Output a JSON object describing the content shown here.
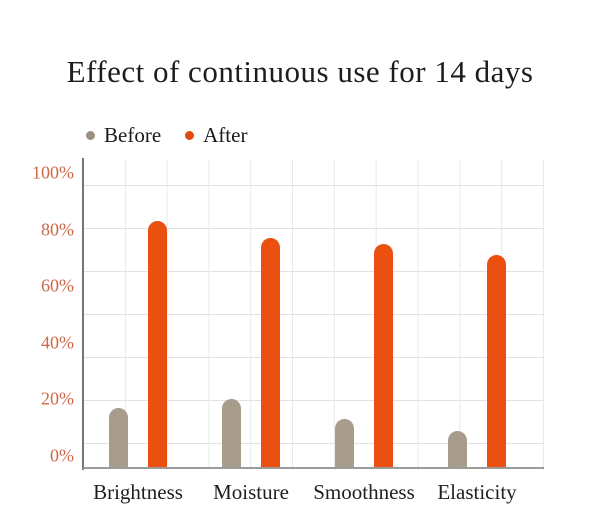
{
  "title": "Effect of continuous use for 14 days",
  "legend": {
    "items": [
      {
        "label": "Before",
        "color": "#9a9183"
      },
      {
        "label": "After",
        "color": "#e04a0e"
      }
    ]
  },
  "chart_data": {
    "type": "bar",
    "title": "Effect of continuous use for 14 days",
    "categories": [
      "Brightness",
      "Moisture",
      "Smoothness",
      "Elasticity"
    ],
    "series": [
      {
        "name": "Before",
        "color": "#a89c8c",
        "values": [
          17,
          20,
          13,
          9
        ]
      },
      {
        "name": "After",
        "color": "#ea500f",
        "values": [
          83,
          77,
          75,
          71
        ]
      }
    ],
    "xlabel": "",
    "ylabel": "",
    "y_unit": "%",
    "ylim": [
      0,
      100
    ],
    "y_tick_step": 20,
    "y_ticks": [
      "0%",
      "20%",
      "40%",
      "60%",
      "80%",
      "100%"
    ],
    "grid": true,
    "legend_position": "top-left",
    "colors": {
      "before_bar": "#a89c8c",
      "after_bar": "#ea500f",
      "y_tick_label": "#ce6747",
      "y_axis_line": "#747578",
      "x_axis_line": "#9b9b99",
      "gridline": "#e5e5e7",
      "title_text": "#1d1d1d"
    }
  }
}
